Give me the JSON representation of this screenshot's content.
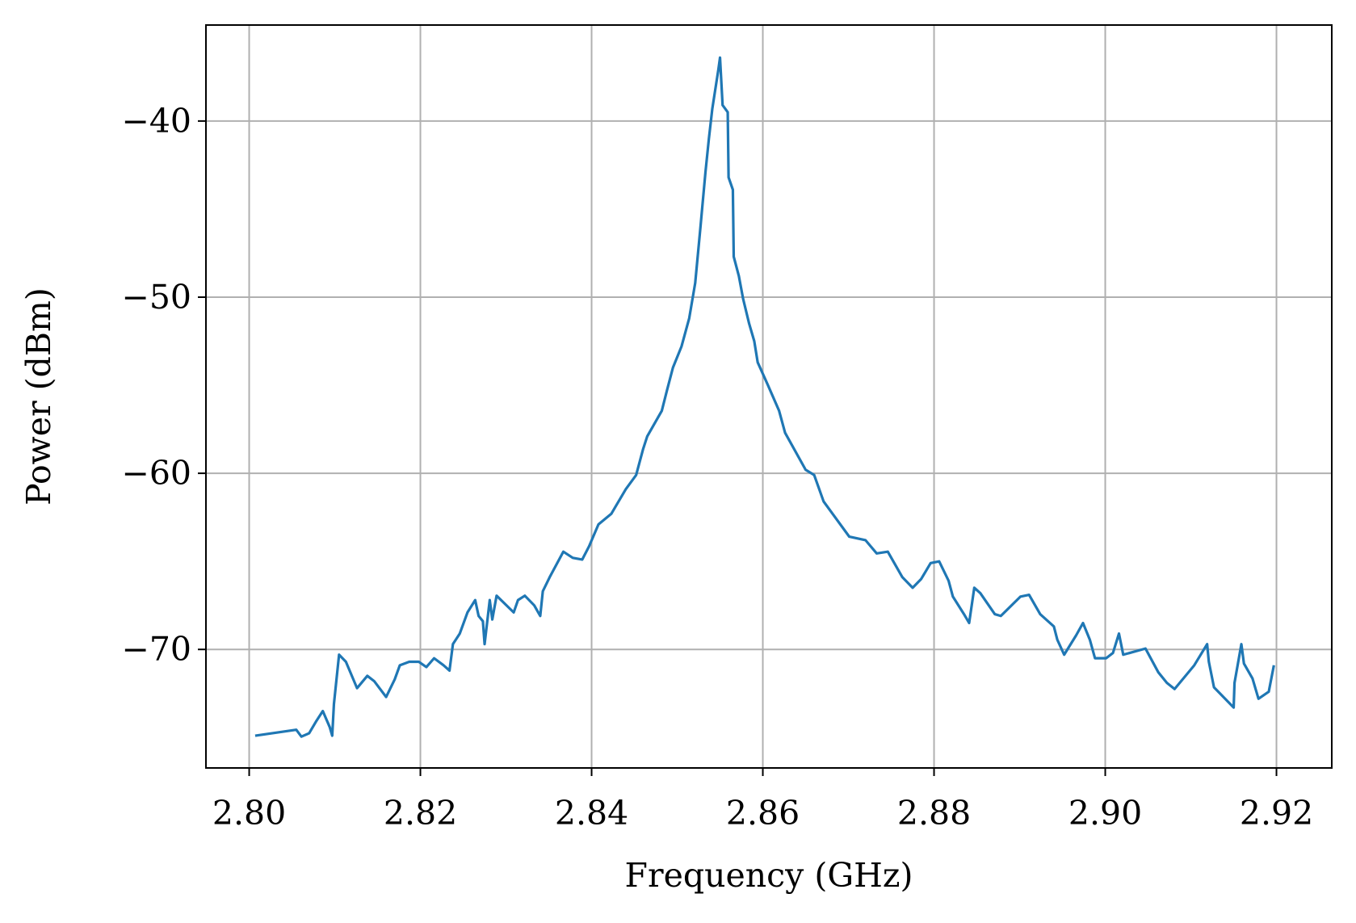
{
  "chart_data": {
    "type": "line",
    "xlabel": "Frequency (GHz)",
    "ylabel": "Power (dBm)",
    "xlim": [
      2.79495,
      2.92646
    ],
    "ylim": [
      -76.73,
      -34.55
    ],
    "xticks": [
      {
        "value": 2.8,
        "label": "2.80"
      },
      2.82,
      2.84,
      2.86,
      2.88,
      {
        "value": 2.9,
        "label": "2.90"
      },
      2.92
    ],
    "yticks": [
      {
        "value": -70,
        "label": "−70"
      },
      {
        "value": -60,
        "label": "−60"
      },
      {
        "value": -50,
        "label": "−50"
      },
      {
        "value": -40,
        "label": "−40"
      }
    ],
    "grid": true,
    "series": [
      {
        "color": "#1f77b4",
        "x": [
          2.8007,
          2.8055,
          2.8061,
          2.807,
          2.8078,
          2.8086,
          2.8094,
          2.8097,
          2.8099,
          2.8105,
          2.8113,
          2.8126,
          2.8138,
          2.8146,
          2.816,
          2.817,
          2.8176,
          2.8187,
          2.8198,
          2.8207,
          2.8216,
          2.8227,
          2.8234,
          2.8238,
          2.8246,
          2.8255,
          2.8264,
          2.8268,
          2.8273,
          2.8275,
          2.8281,
          2.8284,
          2.8289,
          2.8309,
          2.8314,
          2.8322,
          2.8333,
          2.834,
          2.8343,
          2.8351,
          2.8367,
          2.8378,
          2.8389,
          2.8397,
          2.8408,
          2.8423,
          2.844,
          2.8452,
          2.846,
          2.8465,
          2.8482,
          2.8488,
          2.8495,
          2.8505,
          2.8514,
          2.8521,
          2.8527,
          2.8533,
          2.8537,
          2.8541,
          2.8548,
          2.855,
          2.8553,
          2.8559,
          2.856,
          2.8565,
          2.8566,
          2.8572,
          2.8577,
          2.8584,
          2.859,
          2.8594,
          2.8606,
          2.8619,
          2.8626,
          2.865,
          2.866,
          2.8671,
          2.8701,
          2.872,
          2.8733,
          2.8746,
          2.8763,
          2.8775,
          2.8785,
          2.8796,
          2.8806,
          2.8817,
          2.8822,
          2.8835,
          2.8841,
          2.8847,
          2.8854,
          2.8871,
          2.8878,
          2.8901,
          2.8911,
          2.8924,
          2.894,
          2.8944,
          2.8952,
          2.8966,
          2.8974,
          2.8982,
          2.8988,
          2.9001,
          2.9009,
          2.9016,
          2.9021,
          2.9047,
          2.9062,
          2.9072,
          2.9081,
          2.9104,
          2.9119,
          2.9121,
          2.9127,
          2.915,
          2.9151,
          2.9159,
          2.9162,
          2.9172,
          2.9179,
          2.9191,
          2.9197
        ],
        "values": [
          -74.9,
          -74.56,
          -74.95,
          -74.76,
          -74.1,
          -73.5,
          -74.4,
          -74.9,
          -73.1,
          -70.3,
          -70.7,
          -72.2,
          -71.5,
          -71.8,
          -72.7,
          -71.7,
          -70.9,
          -70.7,
          -70.7,
          -71.0,
          -70.5,
          -70.9,
          -71.2,
          -69.7,
          -69.1,
          -67.9,
          -67.2,
          -68.1,
          -68.4,
          -69.7,
          -67.2,
          -68.3,
          -66.95,
          -67.9,
          -67.2,
          -66.95,
          -67.5,
          -68.1,
          -66.7,
          -65.9,
          -64.45,
          -64.8,
          -64.9,
          -64.15,
          -62.9,
          -62.3,
          -60.9,
          -60.1,
          -58.65,
          -57.9,
          -56.45,
          -55.3,
          -54.0,
          -52.8,
          -51.2,
          -49.2,
          -46.1,
          -42.9,
          -41.0,
          -39.3,
          -37.1,
          -36.4,
          -39.1,
          -39.5,
          -43.2,
          -43.9,
          -47.7,
          -48.8,
          -50.1,
          -51.5,
          -52.5,
          -53.7,
          -55.0,
          -56.45,
          -57.7,
          -59.8,
          -60.1,
          -61.6,
          -63.6,
          -63.8,
          -64.55,
          -64.45,
          -65.9,
          -66.5,
          -66.0,
          -65.1,
          -65.0,
          -66.1,
          -67.0,
          -68.0,
          -68.5,
          -66.5,
          -66.8,
          -68.0,
          -68.1,
          -67.0,
          -66.9,
          -68.0,
          -68.7,
          -69.45,
          -70.3,
          -69.2,
          -68.5,
          -69.45,
          -70.5,
          -70.5,
          -70.2,
          -69.1,
          -70.3,
          -69.95,
          -71.3,
          -71.9,
          -72.25,
          -70.9,
          -69.7,
          -70.7,
          -72.15,
          -73.3,
          -71.9,
          -69.7,
          -70.8,
          -71.65,
          -72.8,
          -72.4,
          -70.9
        ]
      }
    ]
  }
}
